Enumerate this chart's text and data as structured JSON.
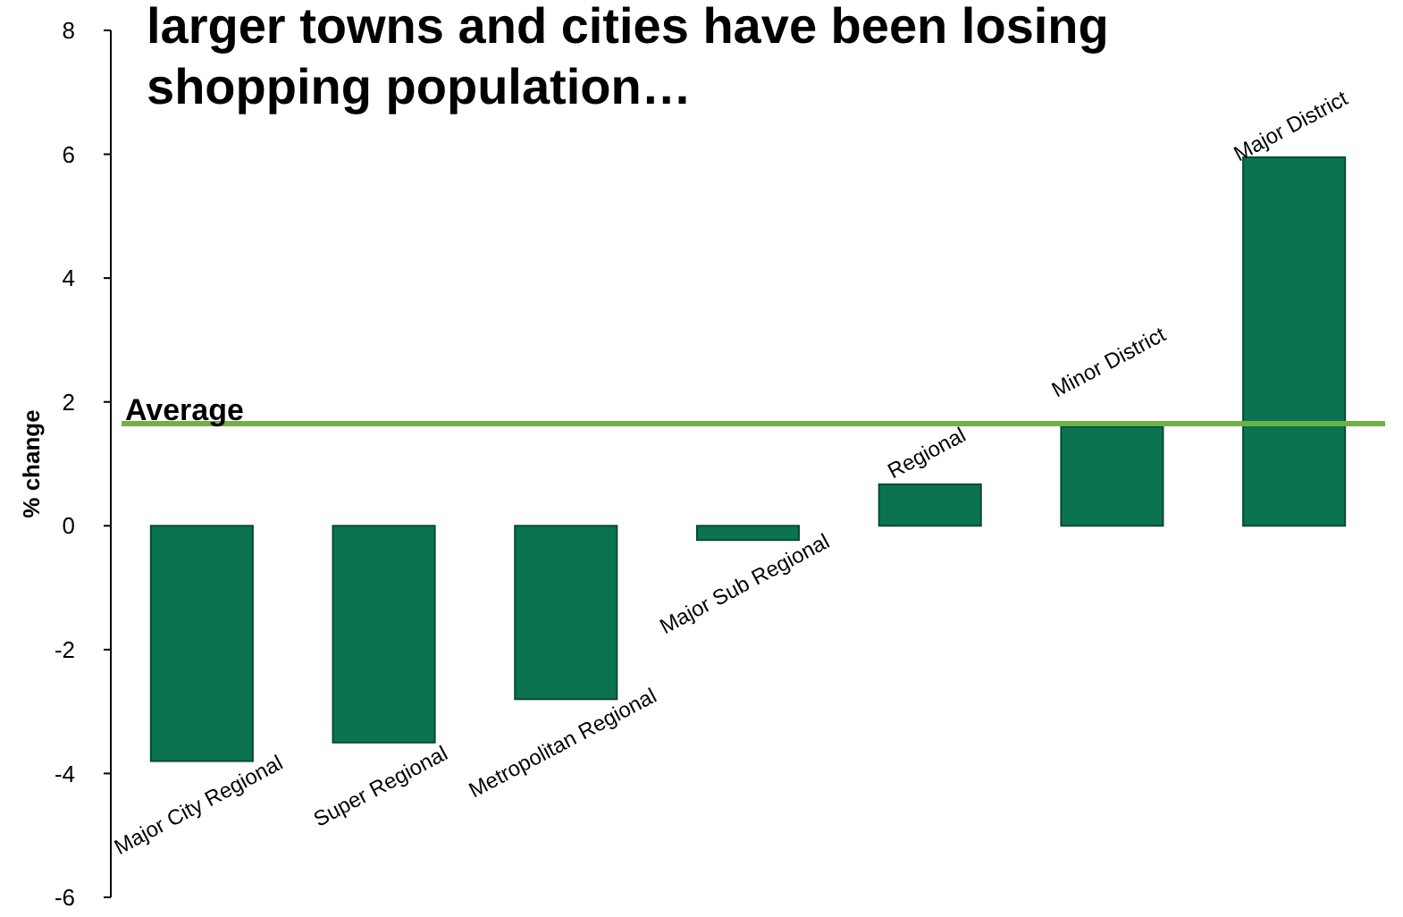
{
  "chart_data": {
    "type": "bar",
    "title": "larger towns and cities have been losing shopping population…",
    "ylabel": "% change",
    "categories": [
      "Major City Regional",
      "Super Regional",
      "Metropolitan Regional",
      "Major Sub Regional",
      "Regional",
      "Minor District",
      "Major District"
    ],
    "values": [
      -3.8,
      -3.5,
      -2.8,
      -0.23,
      0.67,
      1.6,
      5.95
    ],
    "color": "#0b7352",
    "ylim": [
      -6,
      8
    ],
    "yticks": [
      -6,
      -4,
      -2,
      0,
      2,
      4,
      6,
      8
    ],
    "grid": false,
    "ref_lines": [
      {
        "axis": "y",
        "value": 1.65,
        "label": "Average",
        "color": "#6cb33f"
      }
    ]
  }
}
